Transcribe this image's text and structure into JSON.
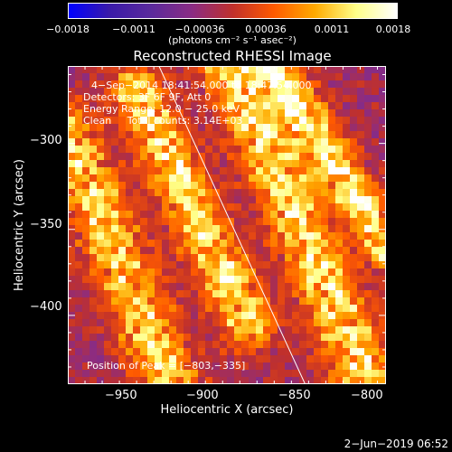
{
  "colorbar": {
    "tick_labels": [
      "−0.0018",
      "−0.0011",
      "−0.00036",
      "0.00036",
      "0.0011",
      "0.0018"
    ],
    "units": "(photons cm⁻² s⁻¹ asec⁻²)",
    "range": [
      -0.0018,
      0.0018
    ],
    "colors": [
      "#0000ff",
      "#3a1aa8",
      "#5a2a9c",
      "#8a2c84",
      "#c0302c",
      "#ff5a00",
      "#ffaa00",
      "#ffff88",
      "#ffffff"
    ]
  },
  "chart_data": {
    "type": "heatmap",
    "title": "Reconstructed RHESSI Image",
    "xlabel": "Heliocentric X (arcsec)",
    "ylabel": "Heliocentric Y (arcsec)",
    "xlim": [
      -975,
      -790
    ],
    "ylim": [
      -440,
      -255
    ],
    "x_ticks": [
      -950,
      -900,
      -850,
      -800
    ],
    "y_ticks": [
      -300,
      -350,
      -400
    ],
    "x_tick_labels": [
      "−950",
      "−900",
      "−850",
      "−800"
    ],
    "y_tick_labels": [
      "−300",
      "−350",
      "−400"
    ],
    "peak": [
      -803,
      -335
    ],
    "limb_line": [
      [
        -922,
        -255
      ],
      [
        -837,
        -440
      ]
    ],
    "bright_bands": [
      {
        "start": [
          -975,
          -295
        ],
        "end": [
          -915,
          -440
        ],
        "width": 22,
        "peak_value": 0.0016
      },
      {
        "start": [
          -935,
          -270
        ],
        "end": [
          -870,
          -405
        ],
        "width": 20,
        "peak_value": 0.0017
      },
      {
        "start": [
          -880,
          -255
        ],
        "end": [
          -800,
          -440
        ],
        "width": 22,
        "peak_value": 0.0018
      },
      {
        "start": [
          -855,
          -255
        ],
        "end": [
          -790,
          -360
        ],
        "width": 16,
        "peak_value": 0.0018
      }
    ]
  },
  "annotations": {
    "time_range": "4−Sep−2014 18:41:54.000 to 18:47:54.000",
    "detectors": "Detectors: 3F 6F 9F, Att 0",
    "energy": "Energy Range: 12.0 − 25.0 keV",
    "clean": "Clean     Total counts: 3.14E+03",
    "peak_position": "Position of Peak = [−803,−335]"
  },
  "datestamp": "2−Jun−2019 06:52"
}
